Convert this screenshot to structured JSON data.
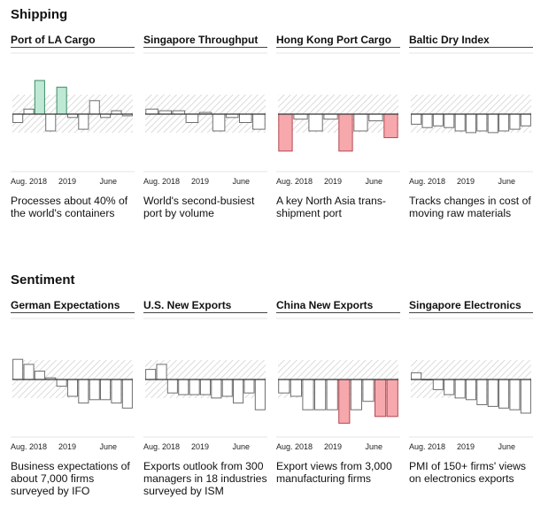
{
  "sections": [
    {
      "title": "Shipping",
      "panels": [
        {
          "title": "Port of LA Cargo",
          "description": "Processes about 40% of the world's containers",
          "chart_data": {
            "type": "bar",
            "title": "Port of LA Cargo",
            "tick_labels": [
              "Aug. 2018",
              "2019",
              "June"
            ],
            "values": [
              -0.25,
              0.15,
              1.0,
              -0.5,
              0.8,
              -0.1,
              -0.45,
              0.4,
              -0.1,
              0.1,
              -0.05
            ],
            "highlight": [
              false,
              false,
              true,
              false,
              true,
              false,
              false,
              false,
              false,
              false,
              false
            ],
            "ylim": [
              -1.2,
              1.0
            ]
          }
        },
        {
          "title": "Singapore Throughput",
          "description": "World's second-busiest port by volume",
          "chart_data": {
            "type": "bar",
            "title": "Singapore Throughput",
            "tick_labels": [
              "Aug. 2018",
              "2019",
              "June"
            ],
            "values": [
              0.15,
              0.1,
              0.1,
              -0.25,
              0.05,
              -0.5,
              -0.1,
              -0.25,
              -0.45
            ],
            "highlight": [
              false,
              false,
              false,
              false,
              false,
              false,
              false,
              false,
              false
            ],
            "ylim": [
              -1.2,
              1.0
            ]
          }
        },
        {
          "title": "Hong Kong Port Cargo",
          "description": "A key North Asia trans-shipment port",
          "chart_data": {
            "type": "bar",
            "title": "Hong Kong Port Cargo",
            "tick_labels": [
              "Aug. 2018",
              "2019",
              "June"
            ],
            "values": [
              -1.1,
              -0.15,
              -0.5,
              -0.15,
              -1.1,
              -0.5,
              -0.2,
              -0.7
            ],
            "highlight": [
              true,
              false,
              false,
              false,
              true,
              false,
              false,
              true
            ],
            "ylim": [
              -1.2,
              1.0
            ]
          }
        },
        {
          "title": "Baltic Dry Index",
          "description": "Tracks changes in cost of moving raw materials",
          "chart_data": {
            "type": "bar",
            "title": "Baltic Dry Index",
            "tick_labels": [
              "Aug. 2018",
              "2019",
              "June"
            ],
            "values": [
              -0.3,
              -0.4,
              -0.35,
              -0.4,
              -0.5,
              -0.55,
              -0.5,
              -0.55,
              -0.5,
              -0.45,
              -0.35
            ],
            "highlight": [
              false,
              false,
              false,
              false,
              false,
              false,
              false,
              false,
              false,
              false,
              false
            ],
            "ylim": [
              -1.2,
              1.0
            ]
          }
        }
      ]
    },
    {
      "title": "Sentiment",
      "panels": [
        {
          "title": "German Expectations",
          "description": "Business expectations of about 7,000 firms surveyed by IFO",
          "chart_data": {
            "type": "bar",
            "title": "German Expectations",
            "tick_labels": [
              "Aug. 2018",
              "2019",
              "June"
            ],
            "values": [
              0.6,
              0.45,
              0.25,
              0.05,
              -0.2,
              -0.5,
              -0.7,
              -0.6,
              -0.6,
              -0.7,
              -0.85
            ],
            "highlight": [
              false,
              false,
              false,
              false,
              false,
              false,
              false,
              false,
              false,
              false,
              false
            ],
            "ylim": [
              -1.2,
              1.0
            ]
          }
        },
        {
          "title": "U.S. New Exports",
          "description": "Exports outlook from 300 managers in 18 industries surveyed by ISM",
          "chart_data": {
            "type": "bar",
            "title": "U.S. New Exports",
            "tick_labels": [
              "Aug. 2018",
              "2019",
              "June"
            ],
            "values": [
              0.3,
              0.45,
              -0.4,
              -0.45,
              -0.45,
              -0.45,
              -0.55,
              -0.5,
              -0.7,
              -0.4,
              -0.9
            ],
            "highlight": [
              false,
              false,
              false,
              false,
              false,
              false,
              false,
              false,
              false,
              false,
              false
            ],
            "ylim": [
              -1.2,
              1.0
            ]
          }
        },
        {
          "title": "China New Exports",
          "description": "Export views from 3,000 manufacturing firms",
          "chart_data": {
            "type": "bar",
            "title": "China New Exports",
            "tick_labels": [
              "Aug. 2018",
              "2019",
              "June"
            ],
            "values": [
              -0.4,
              -0.5,
              -0.9,
              -0.9,
              -0.9,
              -1.3,
              -0.9,
              -0.65,
              -1.1,
              -1.1
            ],
            "highlight": [
              false,
              false,
              false,
              false,
              false,
              true,
              false,
              false,
              true,
              true
            ],
            "ylim": [
              -1.4,
              1.0
            ]
          }
        },
        {
          "title": "Singapore Electronics",
          "description": "PMI of 150+ firms' views on electronics exports",
          "chart_data": {
            "type": "bar",
            "title": "Singapore Electronics",
            "tick_labels": [
              "Aug. 2018",
              "2019",
              "June"
            ],
            "values": [
              0.2,
              0.0,
              -0.3,
              -0.45,
              -0.55,
              -0.6,
              -0.75,
              -0.8,
              -0.85,
              -0.9,
              -1.0
            ],
            "highlight": [
              false,
              false,
              false,
              false,
              false,
              false,
              false,
              false,
              false,
              false,
              false
            ],
            "ylim": [
              -1.2,
              1.0
            ]
          }
        }
      ]
    }
  ],
  "colors": {
    "highlight_green": "#bfe9d5",
    "highlight_red": "#f7a8ad",
    "highlight_green_stroke": "#3a8a65",
    "highlight_red_stroke": "#b5474f",
    "bar_fill": "#ffffff",
    "bar_stroke": "#6e6e6e",
    "hatch": "#d0d0d0"
  }
}
